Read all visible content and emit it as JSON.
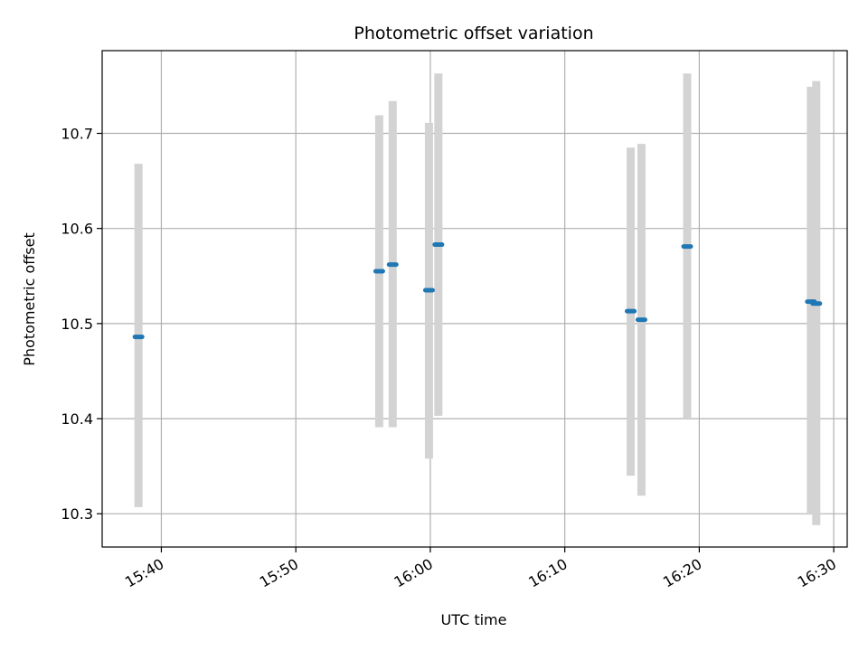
{
  "chart_data": {
    "type": "scatter",
    "title": "Photometric offset variation",
    "xlabel": "UTC time",
    "ylabel": "Photometric offset",
    "x_ticks": [
      "15:40",
      "15:50",
      "16:00",
      "16:10",
      "16:20",
      "16:30"
    ],
    "y_ticks": [
      "10.3",
      "10.4",
      "10.5",
      "10.6",
      "10.7"
    ],
    "xlim": [
      "15:35.6",
      "16:31.0"
    ],
    "ylim": [
      10.265,
      10.787
    ],
    "grid": true,
    "colors": {
      "point": "#1f77b4",
      "errorbar": "#d3d3d3",
      "grid": "#b0b0b0"
    },
    "points": [
      {
        "x": "15:38.3",
        "y": 10.486,
        "ylow": 10.307,
        "yhigh": 10.668
      },
      {
        "x": "15:56.2",
        "y": 10.555,
        "ylow": 10.391,
        "yhigh": 10.719
      },
      {
        "x": "15:57.2",
        "y": 10.562,
        "ylow": 10.391,
        "yhigh": 10.734
      },
      {
        "x": "15:59.9",
        "y": 10.535,
        "ylow": 10.358,
        "yhigh": 10.711
      },
      {
        "x": "16:00.6",
        "y": 10.583,
        "ylow": 10.403,
        "yhigh": 10.763
      },
      {
        "x": "16:14.9",
        "y": 10.513,
        "ylow": 10.34,
        "yhigh": 10.685
      },
      {
        "x": "16:15.7",
        "y": 10.504,
        "ylow": 10.319,
        "yhigh": 10.689
      },
      {
        "x": "16:19.1",
        "y": 10.581,
        "ylow": 10.4,
        "yhigh": 10.763
      },
      {
        "x": "16:28.3",
        "y": 10.523,
        "ylow": 10.299,
        "yhigh": 10.749
      },
      {
        "x": "16:28.7",
        "y": 10.521,
        "ylow": 10.288,
        "yhigh": 10.755
      }
    ]
  }
}
